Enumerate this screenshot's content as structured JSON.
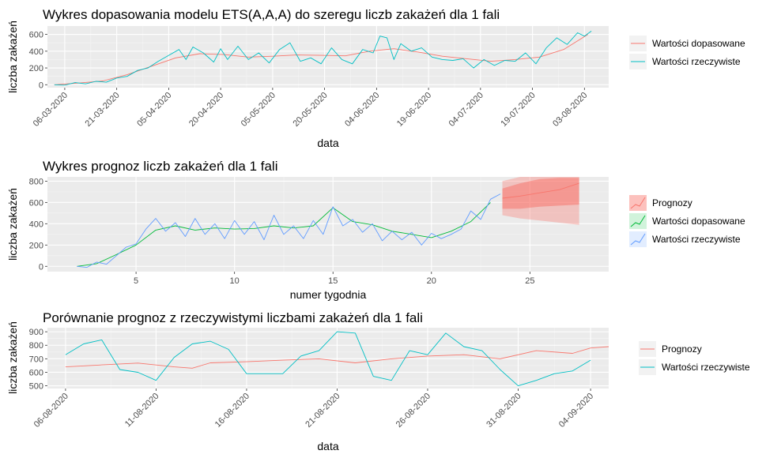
{
  "colors": {
    "fitted": "#F8766D",
    "actual": "#00BFC4",
    "p2_forecast": "#F8766D",
    "p2_fitted": "#00BA38",
    "p2_actual": "#619CFF",
    "panel": "#EBEBEB",
    "grid_major": "#FFFFFF",
    "grid_minor": "#F5F5F5"
  },
  "chart_data": [
    {
      "type": "line",
      "title": "Wykres dopasowania modelu ETS(A,A,A) do szeregu liczb zakażeń dla 1 fali",
      "xlabel": "data",
      "ylabel": "liczba zakażeń",
      "x_type": "date",
      "xlim": [
        "2020-03-01",
        "2020-08-10"
      ],
      "ylim": [
        -35,
        700
      ],
      "x_ticks": [
        "06-03-2020",
        "21-03-2020",
        "05-04-2020",
        "20-04-2020",
        "05-05-2020",
        "20-05-2020",
        "04-06-2020",
        "19-06-2020",
        "04-07-2020",
        "19-07-2020",
        "03-08-2020"
      ],
      "y_ticks": [
        "0",
        "200",
        "400",
        "600"
      ],
      "legend_position": "right",
      "grid": true,
      "series": [
        {
          "name": "Wartości dopasowane",
          "color_key": "fitted",
          "points": [
            [
              "2020-03-03",
              0
            ],
            [
              "2020-03-10",
              20
            ],
            [
              "2020-03-17",
              45
            ],
            [
              "2020-03-24",
              120
            ],
            [
              "2020-03-31",
              220
            ],
            [
              "2020-04-07",
              320
            ],
            [
              "2020-04-14",
              370
            ],
            [
              "2020-04-21",
              360
            ],
            [
              "2020-04-28",
              330
            ],
            [
              "2020-05-05",
              340
            ],
            [
              "2020-05-12",
              355
            ],
            [
              "2020-05-19",
              350
            ],
            [
              "2020-05-26",
              345
            ],
            [
              "2020-06-02",
              400
            ],
            [
              "2020-06-09",
              430
            ],
            [
              "2020-06-16",
              390
            ],
            [
              "2020-06-23",
              340
            ],
            [
              "2020-06-30",
              310
            ],
            [
              "2020-07-07",
              280
            ],
            [
              "2020-07-14",
              300
            ],
            [
              "2020-07-21",
              330
            ],
            [
              "2020-07-28",
              420
            ],
            [
              "2020-08-04",
              600
            ]
          ]
        },
        {
          "name": "Wartości rzeczywiste",
          "color_key": "actual",
          "points": [
            [
              "2020-03-03",
              0
            ],
            [
              "2020-03-06",
              -5
            ],
            [
              "2020-03-09",
              25
            ],
            [
              "2020-03-12",
              10
            ],
            [
              "2020-03-15",
              40
            ],
            [
              "2020-03-18",
              30
            ],
            [
              "2020-03-21",
              80
            ],
            [
              "2020-03-24",
              100
            ],
            [
              "2020-03-27",
              170
            ],
            [
              "2020-03-30",
              200
            ],
            [
              "2020-04-02",
              280
            ],
            [
              "2020-04-05",
              350
            ],
            [
              "2020-04-08",
              420
            ],
            [
              "2020-04-10",
              300
            ],
            [
              "2020-04-12",
              450
            ],
            [
              "2020-04-15",
              380
            ],
            [
              "2020-04-18",
              270
            ],
            [
              "2020-04-20",
              430
            ],
            [
              "2020-04-22",
              300
            ],
            [
              "2020-04-25",
              460
            ],
            [
              "2020-04-28",
              300
            ],
            [
              "2020-05-01",
              380
            ],
            [
              "2020-05-04",
              260
            ],
            [
              "2020-05-07",
              420
            ],
            [
              "2020-05-10",
              500
            ],
            [
              "2020-05-13",
              280
            ],
            [
              "2020-05-16",
              320
            ],
            [
              "2020-05-19",
              250
            ],
            [
              "2020-05-22",
              440
            ],
            [
              "2020-05-25",
              300
            ],
            [
              "2020-05-28",
              250
            ],
            [
              "2020-05-31",
              420
            ],
            [
              "2020-06-03",
              380
            ],
            [
              "2020-06-05",
              580
            ],
            [
              "2020-06-07",
              560
            ],
            [
              "2020-06-09",
              300
            ],
            [
              "2020-06-11",
              490
            ],
            [
              "2020-06-14",
              400
            ],
            [
              "2020-06-17",
              440
            ],
            [
              "2020-06-20",
              330
            ],
            [
              "2020-06-23",
              300
            ],
            [
              "2020-06-26",
              290
            ],
            [
              "2020-06-29",
              310
            ],
            [
              "2020-07-02",
              200
            ],
            [
              "2020-07-05",
              300
            ],
            [
              "2020-07-08",
              230
            ],
            [
              "2020-07-11",
              290
            ],
            [
              "2020-07-14",
              280
            ],
            [
              "2020-07-17",
              380
            ],
            [
              "2020-07-20",
              250
            ],
            [
              "2020-07-23",
              440
            ],
            [
              "2020-07-26",
              560
            ],
            [
              "2020-07-29",
              480
            ],
            [
              "2020-08-01",
              620
            ],
            [
              "2020-08-03",
              580
            ],
            [
              "2020-08-05",
              640
            ]
          ]
        }
      ]
    },
    {
      "type": "line",
      "title": "Wykres prognoz liczb zakażeń dla 1 fali",
      "xlabel": "numer tygodnia",
      "ylabel": "liczba zakażeń",
      "xlim": [
        0.5,
        29
      ],
      "ylim": [
        -50,
        840
      ],
      "x_ticks": [
        5,
        10,
        15,
        20,
        25
      ],
      "y_ticks": [
        0,
        200,
        400,
        600,
        800
      ],
      "legend_position": "right",
      "grid": true,
      "series": [
        {
          "name": "Prognozy",
          "color_key": "p2_forecast",
          "points": [
            [
              23.6,
              640
            ],
            [
              24.5,
              660
            ],
            [
              25.5,
              690
            ],
            [
              26.5,
              720
            ],
            [
              27.5,
              780
            ]
          ],
          "band80": [
            [
              23.6,
              540,
              730
            ],
            [
              24.5,
              540,
              780
            ],
            [
              25.5,
              560,
              820
            ],
            [
              26.5,
              570,
              830
            ],
            [
              27.5,
              580,
              830
            ]
          ],
          "band95": [
            [
              23.6,
              480,
              800
            ],
            [
              24.5,
              450,
              840
            ],
            [
              25.5,
              430,
              840
            ],
            [
              26.5,
              410,
              840
            ],
            [
              27.5,
              390,
              840
            ]
          ]
        },
        {
          "name": "Wartości dopasowane",
          "color_key": "p2_fitted",
          "points": [
            [
              2,
              0
            ],
            [
              3,
              25
            ],
            [
              4,
              110
            ],
            [
              5,
              200
            ],
            [
              6,
              340
            ],
            [
              7,
              380
            ],
            [
              8,
              340
            ],
            [
              9,
              360
            ],
            [
              10,
              350
            ],
            [
              11,
              355
            ],
            [
              12,
              380
            ],
            [
              13,
              360
            ],
            [
              14,
              380
            ],
            [
              15,
              550
            ],
            [
              16,
              420
            ],
            [
              17,
              390
            ],
            [
              18,
              330
            ],
            [
              19,
              300
            ],
            [
              20,
              270
            ],
            [
              21,
              330
            ],
            [
              22,
              420
            ],
            [
              23,
              600
            ]
          ]
        },
        {
          "name": "Wartości rzeczywiste",
          "color_key": "p2_actual",
          "points": [
            [
              2,
              0
            ],
            [
              2.5,
              -10
            ],
            [
              3,
              40
            ],
            [
              3.5,
              20
            ],
            [
              4,
              100
            ],
            [
              4.5,
              180
            ],
            [
              5,
              210
            ],
            [
              5.5,
              350
            ],
            [
              6,
              450
            ],
            [
              6.5,
              330
            ],
            [
              7,
              410
            ],
            [
              7.5,
              280
            ],
            [
              8,
              450
            ],
            [
              8.5,
              300
            ],
            [
              9,
              400
            ],
            [
              9.5,
              260
            ],
            [
              10,
              430
            ],
            [
              10.5,
              300
            ],
            [
              11,
              420
            ],
            [
              11.5,
              250
            ],
            [
              12,
              480
            ],
            [
              12.5,
              300
            ],
            [
              13,
              380
            ],
            [
              13.5,
              260
            ],
            [
              14,
              430
            ],
            [
              14.5,
              300
            ],
            [
              15,
              560
            ],
            [
              15.5,
              380
            ],
            [
              16,
              440
            ],
            [
              16.5,
              320
            ],
            [
              17,
              400
            ],
            [
              17.5,
              240
            ],
            [
              18,
              330
            ],
            [
              18.5,
              250
            ],
            [
              19,
              320
            ],
            [
              19.5,
              200
            ],
            [
              20,
              310
            ],
            [
              20.5,
              260
            ],
            [
              21,
              300
            ],
            [
              21.5,
              350
            ],
            [
              22,
              520
            ],
            [
              22.5,
              440
            ],
            [
              23,
              630
            ],
            [
              23.5,
              680
            ]
          ]
        }
      ]
    },
    {
      "type": "line",
      "title": "Porównanie prognoz z rzeczywistymi liczbami zakażeń dla 1 fali",
      "xlabel": "data",
      "ylabel": "liczba zakażeń",
      "x_type": "date",
      "xlim": [
        "2020-08-05",
        "2020-09-05"
      ],
      "ylim": [
        480,
        930
      ],
      "x_ticks": [
        "06-08-2020",
        "11-08-2020",
        "16-08-2020",
        "21-08-2020",
        "26-08-2020",
        "31-08-2020",
        "04-09-2020"
      ],
      "y_ticks": [
        "500",
        "600",
        "700",
        "800",
        "900"
      ],
      "legend_position": "right",
      "grid": true,
      "series": [
        {
          "name": "Prognozy",
          "color_key": "fitted",
          "points": [
            [
              "2020-08-06",
              640
            ],
            [
              "2020-08-08",
              655
            ],
            [
              "2020-08-10",
              668
            ],
            [
              "2020-08-12",
              640
            ],
            [
              "2020-08-13",
              630
            ],
            [
              "2020-08-14",
              670
            ],
            [
              "2020-08-16",
              678
            ],
            [
              "2020-08-18",
              690
            ],
            [
              "2020-08-20",
              700
            ],
            [
              "2020-08-22",
              670
            ],
            [
              "2020-08-24",
              700
            ],
            [
              "2020-08-26",
              720
            ],
            [
              "2020-08-28",
              730
            ],
            [
              "2020-08-30",
              700
            ],
            [
              "2020-09-01",
              760
            ],
            [
              "2020-09-03",
              740
            ],
            [
              "2020-09-04",
              780
            ],
            [
              "2020-09-05",
              790
            ]
          ]
        },
        {
          "name": "Wartości rzeczywiste",
          "color_key": "actual",
          "points": [
            [
              "2020-08-06",
              730
            ],
            [
              "2020-08-07",
              810
            ],
            [
              "2020-08-08",
              840
            ],
            [
              "2020-08-09",
              620
            ],
            [
              "2020-08-10",
              600
            ],
            [
              "2020-08-11",
              540
            ],
            [
              "2020-08-12",
              710
            ],
            [
              "2020-08-13",
              810
            ],
            [
              "2020-08-14",
              830
            ],
            [
              "2020-08-15",
              770
            ],
            [
              "2020-08-16",
              590
            ],
            [
              "2020-08-17",
              590
            ],
            [
              "2020-08-18",
              590
            ],
            [
              "2020-08-19",
              720
            ],
            [
              "2020-08-20",
              760
            ],
            [
              "2020-08-21",
              900
            ],
            [
              "2020-08-22",
              890
            ],
            [
              "2020-08-23",
              570
            ],
            [
              "2020-08-24",
              540
            ],
            [
              "2020-08-25",
              760
            ],
            [
              "2020-08-26",
              730
            ],
            [
              "2020-08-27",
              890
            ],
            [
              "2020-08-28",
              790
            ],
            [
              "2020-08-29",
              760
            ],
            [
              "2020-08-30",
              620
            ],
            [
              "2020-08-31",
              500
            ],
            [
              "2020-09-01",
              540
            ],
            [
              "2020-09-02",
              590
            ],
            [
              "2020-09-03",
              610
            ],
            [
              "2020-09-04",
              690
            ]
          ]
        }
      ]
    }
  ]
}
